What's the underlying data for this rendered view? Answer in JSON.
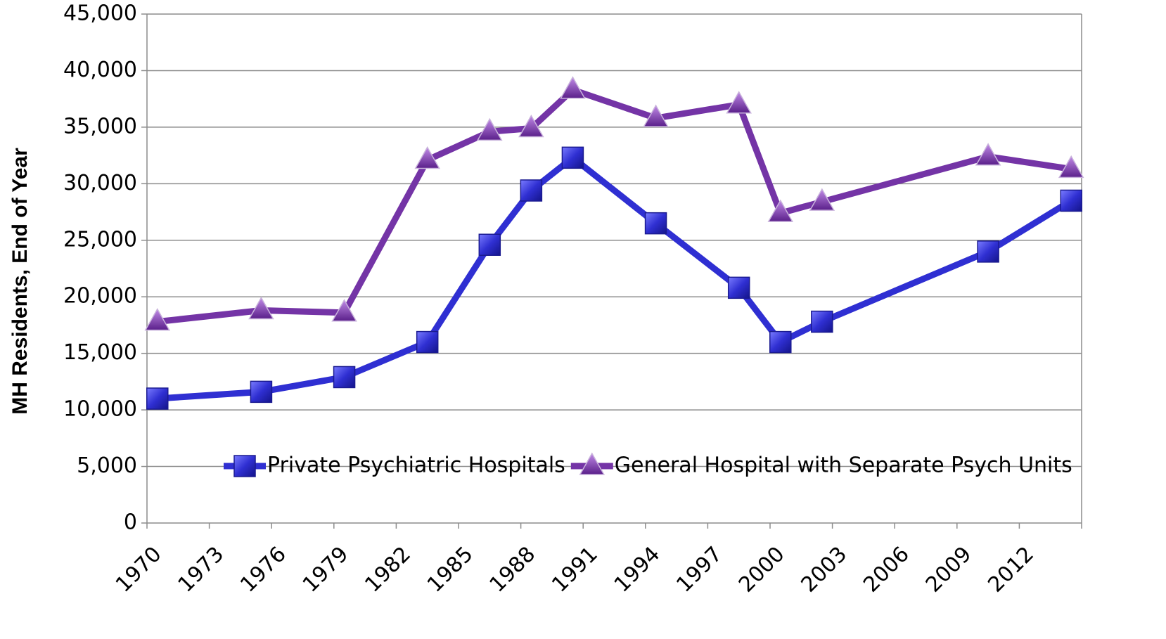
{
  "chart_data": {
    "type": "line",
    "y_label": "MH Residents, End of Year",
    "x": [
      1970.5,
      1975.5,
      1979.5,
      1983.5,
      1986.5,
      1988.5,
      1990.5,
      1994.5,
      1998.5,
      2000.5,
      2002.5,
      2010.5,
      2014.5
    ],
    "series": [
      {
        "name": "Private Psychiatric Hospitals",
        "color": "#2f2fd2",
        "marker": "square",
        "values": [
          11000,
          11600,
          12900,
          16000,
          24600,
          29400,
          32300,
          26500,
          20800,
          16000,
          17800,
          24000,
          28500
        ]
      },
      {
        "name": "General Hospital with Separate Psych Units",
        "color": "#7434a6",
        "marker": "triangle",
        "values": [
          17800,
          18800,
          18600,
          32100,
          34600,
          34900,
          38300,
          35800,
          37000,
          27400,
          28400,
          32400,
          31300
        ]
      }
    ],
    "xlim": [
      1970,
      2015
    ],
    "xticks": [
      1970,
      1973,
      1976,
      1979,
      1982,
      1985,
      1988,
      1991,
      1994,
      1997,
      2000,
      2003,
      2006,
      2009,
      2012
    ],
    "ylim": [
      0,
      45000
    ],
    "yticks": [
      0,
      {
        "value": 5000,
        "label": "5,000"
      },
      {
        "value": 10000,
        "label": "10,000"
      },
      {
        "value": 15000,
        "label": "15,000"
      },
      {
        "value": 20000,
        "label": "20,000"
      },
      {
        "value": 25000,
        "label": "25,000"
      },
      {
        "value": 30000,
        "label": "30,000"
      },
      {
        "value": 35000,
        "label": "35,000"
      },
      {
        "value": 40000,
        "label": "40,000"
      },
      {
        "value": 45000,
        "label": "45,000"
      }
    ],
    "grid": true,
    "legend": "bottom"
  }
}
